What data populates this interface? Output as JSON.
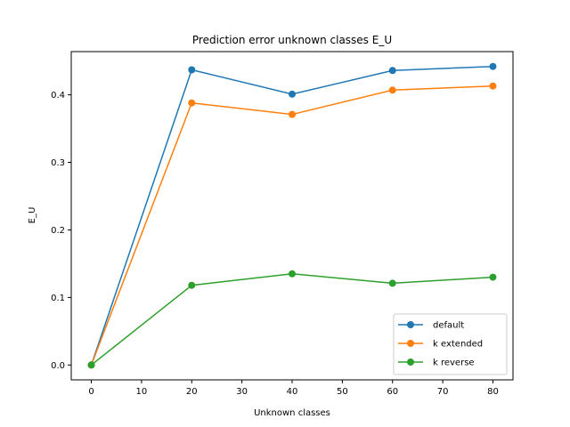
{
  "chart_data": {
    "type": "line",
    "title": "Prediction error unknown classes E_U",
    "xlabel": "Unknown classes",
    "ylabel": "E_U",
    "x": [
      0,
      20,
      40,
      60,
      80
    ],
    "xlim": [
      -4,
      84
    ],
    "ylim": [
      -0.022,
      0.464
    ],
    "xticks": [
      0,
      10,
      20,
      30,
      40,
      50,
      60,
      70,
      80
    ],
    "yticks": [
      0.0,
      0.1,
      0.2,
      0.3,
      0.4
    ],
    "ytick_labels": [
      "0.0",
      "0.1",
      "0.2",
      "0.3",
      "0.4"
    ],
    "grid": false,
    "legend_position": "lower right",
    "series": [
      {
        "name": "default",
        "color": "#1f77b4",
        "values": [
          0.0,
          0.437,
          0.401,
          0.436,
          0.442
        ]
      },
      {
        "name": "k extended",
        "color": "#ff7f0e",
        "values": [
          0.0,
          0.388,
          0.371,
          0.407,
          0.413
        ]
      },
      {
        "name": "k reverse",
        "color": "#2ca02c",
        "values": [
          0.0,
          0.118,
          0.135,
          0.121,
          0.13
        ]
      }
    ]
  }
}
